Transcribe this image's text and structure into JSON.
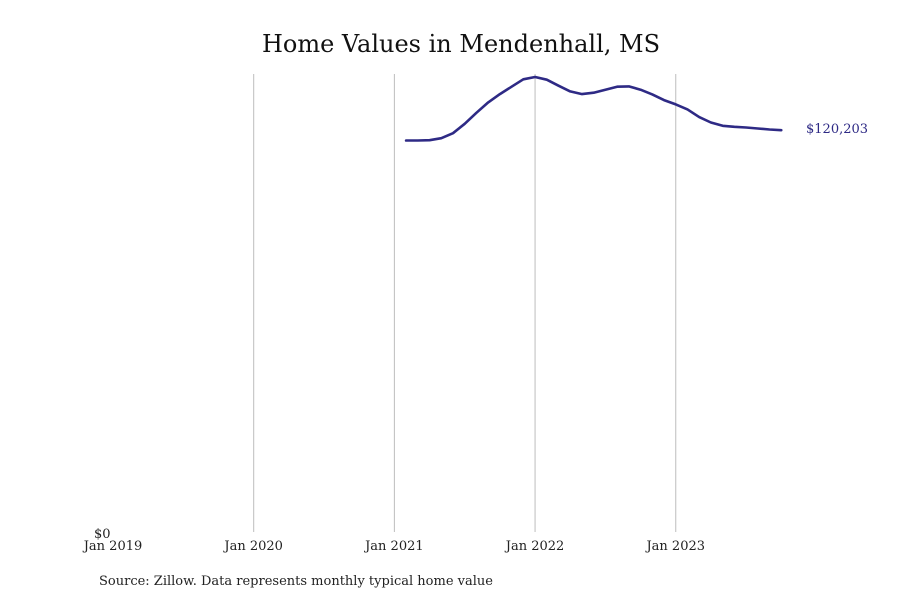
{
  "chart_data": {
    "type": "line",
    "title": "Home Values in Mendenhall, MS",
    "source": "Source: Zillow. Data represents monthly typical home value",
    "xlabel": "",
    "ylabel": "",
    "x_ticks": [
      {
        "date": "2019-01",
        "label": "Jan 2019"
      },
      {
        "date": "2020-01",
        "label": "Jan 2020"
      },
      {
        "date": "2021-01",
        "label": "Jan 2021"
      },
      {
        "date": "2022-01",
        "label": "Jan 2022"
      },
      {
        "date": "2023-01",
        "label": "Jan 2023"
      }
    ],
    "y_tick_label": "$0",
    "xlim": [
      "2019-01",
      "2023-11"
    ],
    "ylim": [
      0,
      137000
    ],
    "grid": "vertical-only",
    "line_color": "#2e2a85",
    "end_label": "$120,203",
    "series": [
      {
        "x": [
          "2021-02",
          "2021-03",
          "2021-04",
          "2021-05",
          "2021-06",
          "2021-07",
          "2021-08",
          "2021-09",
          "2021-10",
          "2021-11",
          "2021-12",
          "2022-01",
          "2022-02",
          "2022-03",
          "2022-04",
          "2022-05",
          "2022-06",
          "2022-07",
          "2022-08",
          "2022-09",
          "2022-10",
          "2022-11",
          "2022-12",
          "2023-01",
          "2023-02",
          "2023-03",
          "2023-04",
          "2023-05",
          "2023-06",
          "2023-07",
          "2023-08",
          "2023-09",
          "2023-10"
        ],
        "y": [
          117100,
          117100,
          117200,
          117800,
          119300,
          122100,
          125400,
          128500,
          131000,
          133200,
          135400,
          136100,
          135300,
          133500,
          131800,
          131000,
          131400,
          132300,
          133200,
          133300,
          132300,
          130900,
          129200,
          127900,
          126400,
          124100,
          122500,
          121500,
          121200,
          121000,
          120700,
          120400,
          120203
        ]
      }
    ]
  }
}
